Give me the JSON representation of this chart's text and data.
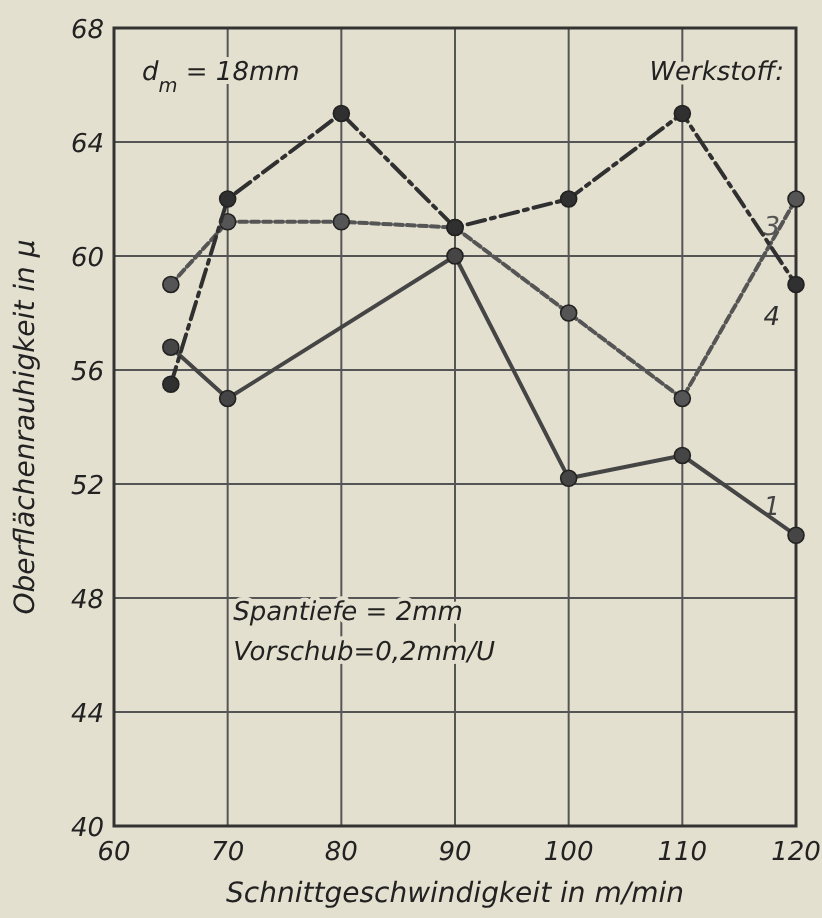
{
  "chart_data": {
    "type": "line",
    "xlabel": "Schnittgeschwindigkeit in m/min",
    "ylabel": "Oberflächenrauhigkeit in μ",
    "x": [
      65,
      70,
      80,
      90,
      100,
      110,
      120
    ],
    "series": [
      {
        "name": "1",
        "color": "#454545",
        "line_style": "solid",
        "values": [
          56.8,
          55,
          60,
          52.2,
          53,
          50.2
        ],
        "x": [
          65,
          70,
          90,
          100,
          110,
          120
        ]
      },
      {
        "name": "3",
        "color": "#555555",
        "line_style": "dotted",
        "values": [
          59,
          61.2,
          61.2,
          61,
          58,
          55,
          62
        ]
      },
      {
        "name": "4",
        "color": "#303030",
        "line_style": "dashed",
        "values": [
          55.5,
          62,
          65,
          61,
          62,
          65,
          59
        ]
      }
    ],
    "xlim": [
      60,
      120
    ],
    "ylim": [
      40,
      68
    ],
    "xticks": [
      60,
      70,
      80,
      90,
      100,
      110,
      120
    ],
    "yticks": [
      40,
      44,
      48,
      52,
      56,
      60,
      64,
      68
    ],
    "grid": true,
    "marker": "circle",
    "annotations": [
      "d$_{m}$ = 18mm",
      "Werkstoff:",
      "Spantiefe = 2mm",
      "Vorschub=0,2mm/U"
    ]
  }
}
